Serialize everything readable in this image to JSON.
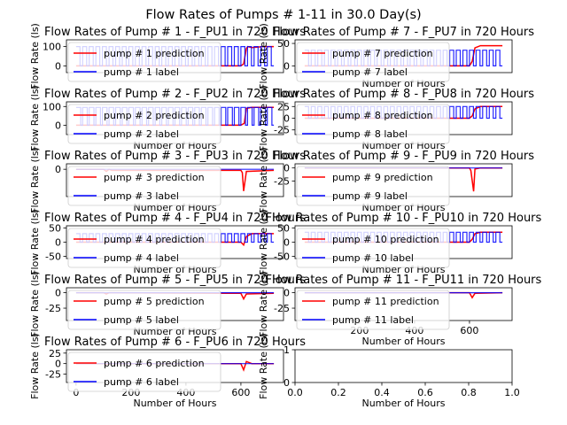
{
  "figure": {
    "suptitle": "Flow Rates of Pumps # 1-11 in 30.0 Day(s)",
    "xlabel": "Number of Hours",
    "ylabel": "Flow Rate (ls)"
  },
  "colors": {
    "prediction": "#ff0000",
    "label": "#0000ff"
  },
  "chart_data": [
    {
      "type": "line",
      "title": "Flow Rates of Pump # 1 - F_PU1 in 720 Hours",
      "xlabel": "",
      "ylabel": "Flow Rate (ls)",
      "xlim": [
        -35,
        755
      ],
      "ylim": [
        -35,
        135
      ],
      "xticks": [],
      "yticks": [
        0,
        100
      ],
      "legend": "upper-left",
      "pattern": {
        "on": 100,
        "off": 0,
        "cycle": 24,
        "duty": 0.6,
        "start": 0,
        "end": 720
      },
      "series": [
        {
          "name": "pump # 1 prediction",
          "x": [
            0,
            120,
            150,
            170,
            600,
            610,
            620,
            625,
            640,
            680,
            720
          ],
          "y": [
            0,
            0,
            0,
            0,
            0,
            10,
            90,
            100,
            95,
            100,
            100
          ]
        },
        {
          "name": "pump # 1 label",
          "x": [
            0,
            720
          ],
          "y": [
            100,
            100
          ]
        }
      ]
    },
    {
      "type": "line",
      "title": "Flow Rates of Pump # 2 - F_PU2 in 720 Hours",
      "xlabel": "Number of Hours",
      "ylabel": "Flow Rate (ls)",
      "xlim": [
        -35,
        755
      ],
      "ylim": [
        -50,
        125
      ],
      "xticks": [],
      "yticks": [
        0,
        100
      ],
      "legend": "upper-left",
      "pattern": {
        "on": 95,
        "off": 0,
        "cycle": 24,
        "duty": 0.7,
        "start": 0,
        "end": 720
      },
      "series": [
        {
          "name": "pump # 2 prediction",
          "x": [
            0,
            600,
            612,
            620,
            640,
            720
          ],
          "y": [
            0,
            0,
            10,
            90,
            95,
            95
          ]
        },
        {
          "name": "pump # 2 label",
          "x": [
            0,
            720
          ],
          "y": [
            95,
            95
          ]
        }
      ]
    },
    {
      "type": "line",
      "title": "Flow Rates of Pump # 3 - F_PU3 in 720 Hours",
      "xlabel": "Number of Hours",
      "ylabel": "Flow Rate (ls)",
      "xlim": [
        -35,
        755
      ],
      "ylim": [
        -25,
        5
      ],
      "xticks": [],
      "yticks": [
        0
      ],
      "legend": "upper-left",
      "series": [
        {
          "name": "pump # 3 prediction",
          "x": [
            0,
            100,
            110,
            120,
            130,
            600,
            605,
            610,
            620,
            720
          ],
          "y": [
            0,
            0,
            -2,
            0,
            -1,
            -1,
            -3,
            -20,
            -2,
            -1
          ]
        },
        {
          "name": "pump # 3 label",
          "x": [
            0,
            720
          ],
          "y": [
            0,
            0
          ]
        }
      ]
    },
    {
      "type": "line",
      "title": "Flow Rates of Pump # 4 - F_PU4 in 720 Hours",
      "xlabel": "Number of Hours",
      "ylabel": "Flow Rate (ls)",
      "xlim": [
        -35,
        755
      ],
      "ylim": [
        -58,
        58
      ],
      "xticks": [],
      "yticks": [
        -50,
        0,
        50
      ],
      "legend": "upper-left",
      "pattern": {
        "on": 30,
        "off": 0,
        "cycle": 24,
        "duty": 0.6,
        "start": 0,
        "end": 720
      },
      "series": [
        {
          "name": "pump # 4 prediction",
          "x": [
            0,
            600,
            610,
            620,
            640,
            720
          ],
          "y": [
            0,
            0,
            -10,
            20,
            30,
            30
          ]
        },
        {
          "name": "pump # 4 label",
          "x": [
            0,
            720
          ],
          "y": [
            30,
            30
          ]
        }
      ]
    },
    {
      "type": "line",
      "title": "Flow Rates of Pump # 5 - F_PU5 in 720 Hours",
      "xlabel": "Number of Hours",
      "ylabel": "Flow Rate (ls)",
      "xlim": [
        -35,
        755
      ],
      "ylim": [
        -45,
        8
      ],
      "xticks": [],
      "yticks": [
        -25,
        0
      ],
      "legend": "upper-left",
      "series": [
        {
          "name": "pump # 5 prediction",
          "x": [
            0,
            100,
            110,
            120,
            600,
            610,
            620,
            720
          ],
          "y": [
            0,
            0,
            -2,
            0,
            -1,
            -10,
            -2,
            -1
          ]
        },
        {
          "name": "pump # 5 label",
          "x": [
            0,
            720
          ],
          "y": [
            0,
            0
          ]
        }
      ]
    },
    {
      "type": "line",
      "title": "Flow Rates of Pump # 6 - F_PU6 in 720 Hours",
      "xlabel": "Number of Hours",
      "ylabel": "Flow Rate (ls)",
      "xlim": [
        -35,
        755
      ],
      "ylim": [
        -45,
        33
      ],
      "xticks": [
        0,
        200,
        400,
        600
      ],
      "yticks": [
        -25,
        0,
        25
      ],
      "legend": "upper-left",
      "series": [
        {
          "name": "pump # 6 prediction",
          "x": [
            0,
            100,
            110,
            120,
            600,
            610,
            620,
            640,
            720
          ],
          "y": [
            0,
            0,
            -2,
            0,
            0,
            -15,
            5,
            0,
            0
          ]
        },
        {
          "name": "pump # 6 label",
          "x": [
            0,
            720
          ],
          "y": [
            0,
            0
          ]
        }
      ]
    },
    {
      "type": "line",
      "title": "Flow Rates of Pump # 7 - F_PU7 in 720 Hours",
      "xlabel": "Number of Hours",
      "ylabel": "Flow Rate (ls)",
      "xlim": [
        -35,
        755
      ],
      "ylim": [
        -15,
        58
      ],
      "xticks": [],
      "yticks": [
        0,
        50
      ],
      "legend": "upper-left",
      "pattern": {
        "on": 35,
        "off": 0,
        "cycle": 24,
        "duty": 0.6,
        "start": 0,
        "end": 720
      },
      "series": [
        {
          "name": "pump # 7 prediction",
          "x": [
            0,
            600,
            610,
            620,
            640,
            720
          ],
          "y": [
            0,
            0,
            10,
            40,
            45,
            45
          ]
        },
        {
          "name": "pump # 7 label",
          "x": [
            0,
            720
          ],
          "y": [
            35,
            35
          ]
        }
      ]
    },
    {
      "type": "line",
      "title": "Flow Rates of Pump # 8 - F_PU8 in 720 Hours",
      "xlabel": "Number of Hours",
      "ylabel": "Flow Rate (ls)",
      "xlim": [
        -35,
        755
      ],
      "ylim": [
        -35,
        35
      ],
      "xticks": [],
      "yticks": [
        -25,
        0,
        25
      ],
      "legend": "upper-left",
      "pattern": {
        "on": 25,
        "off": 0,
        "cycle": 24,
        "duty": 0.6,
        "start": 0,
        "end": 720
      },
      "series": [
        {
          "name": "pump # 8 prediction",
          "x": [
            0,
            600,
            610,
            620,
            640,
            720
          ],
          "y": [
            0,
            0,
            5,
            20,
            25,
            25
          ]
        },
        {
          "name": "pump # 8 label",
          "x": [
            0,
            720
          ],
          "y": [
            25,
            25
          ]
        }
      ]
    },
    {
      "type": "line",
      "title": "Flow Rates of Pump # 9 - F_PU9 in 720 Hours",
      "xlabel": "Number of Hours",
      "ylabel": "Flow Rate (ls)",
      "xlim": [
        -35,
        755
      ],
      "ylim": [
        -55,
        8
      ],
      "xticks": [],
      "yticks": [
        -25,
        0
      ],
      "legend": "upper-left",
      "series": [
        {
          "name": "pump # 9 prediction",
          "x": [
            0,
            600,
            605,
            615,
            620,
            640,
            720
          ],
          "y": [
            0,
            0,
            -5,
            -45,
            -2,
            0,
            0
          ]
        },
        {
          "name": "pump # 9 label",
          "x": [
            0,
            720
          ],
          "y": [
            0,
            0
          ]
        }
      ]
    },
    {
      "type": "line",
      "title": "Flow Rates of Pump # 10 - F_PU10 in 720 Hours",
      "xlabel": "Number of Hours",
      "ylabel": "Flow Rate (ls)",
      "xlim": [
        -35,
        755
      ],
      "ylim": [
        -58,
        58
      ],
      "xticks": [],
      "yticks": [
        -50,
        0,
        50
      ],
      "legend": "upper-left",
      "pattern": {
        "on": 35,
        "off": 0,
        "cycle": 24,
        "duty": 0.6,
        "start": 0,
        "end": 720
      },
      "series": [
        {
          "name": "pump # 10 prediction",
          "x": [
            0,
            600,
            610,
            620,
            640,
            720
          ],
          "y": [
            0,
            0,
            10,
            30,
            35,
            35
          ]
        },
        {
          "name": "pump # 10 label",
          "x": [
            0,
            720
          ],
          "y": [
            35,
            35
          ]
        }
      ]
    },
    {
      "type": "line",
      "title": "Flow Rates of Pump # 11 - F_PU11 in 720 Hours",
      "xlabel": "Number of Hours",
      "ylabel": "Flow Rate (ls)",
      "xlim": [
        -35,
        755
      ],
      "ylim": [
        -45,
        8
      ],
      "xticks": [
        200,
        400,
        600
      ],
      "yticks": [
        -25,
        0
      ],
      "legend": "upper-left",
      "series": [
        {
          "name": "pump # 11 prediction",
          "x": [
            0,
            600,
            610,
            620,
            720
          ],
          "y": [
            0,
            0,
            -8,
            -1,
            0
          ]
        },
        {
          "name": "pump # 11 label",
          "x": [
            0,
            720
          ],
          "y": [
            0,
            0
          ]
        }
      ]
    },
    {
      "type": "line",
      "title": "",
      "xlabel": "Number of Hours",
      "ylabel": "Flow Rate (ls)",
      "xlim": [
        0,
        1
      ],
      "ylim": [
        0,
        1
      ],
      "xticks": [
        0.0,
        0.2,
        0.4,
        0.6,
        0.8,
        1.0
      ],
      "yticks": [
        0,
        1
      ],
      "series": []
    }
  ]
}
